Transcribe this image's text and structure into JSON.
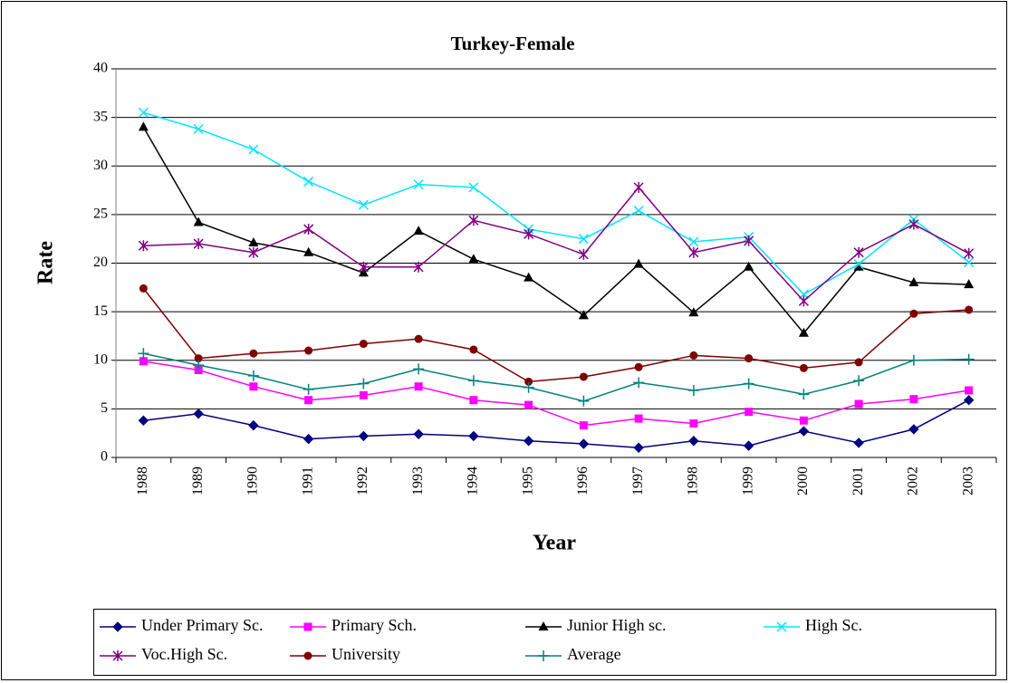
{
  "chart_data": {
    "type": "line",
    "title": "Turkey-Female",
    "x_label": "Year",
    "y_label": "Rate",
    "categories": [
      "1988",
      "1989",
      "1990",
      "1991",
      "1992",
      "1993",
      "1994",
      "1995",
      "1996",
      "1997",
      "1998",
      "1999",
      "2000",
      "2001",
      "2002",
      "2003"
    ],
    "ylim": [
      0,
      40
    ],
    "yticks": [
      0,
      5,
      10,
      15,
      20,
      25,
      30,
      35,
      40
    ],
    "grid": true,
    "legend": "bottom",
    "series": [
      {
        "name": "Under Primary Sc.",
        "color": "#000080",
        "marker": "diamond",
        "values": [
          3.8,
          4.5,
          3.3,
          1.9,
          2.2,
          2.4,
          2.2,
          1.7,
          1.4,
          1.0,
          1.7,
          1.2,
          2.7,
          1.5,
          2.9,
          5.9
        ]
      },
      {
        "name": "Primary Sch.",
        "color": "#ff00ff",
        "marker": "square",
        "values": [
          9.9,
          9.0,
          7.3,
          5.9,
          6.4,
          7.3,
          5.9,
          5.4,
          3.3,
          4.0,
          3.5,
          4.7,
          3.8,
          5.5,
          6.0,
          6.9
        ]
      },
      {
        "name": "Junior High sc.",
        "color": "#000000",
        "marker": "triangle",
        "values": [
          34.0,
          24.2,
          22.1,
          21.1,
          19.0,
          23.3,
          20.4,
          18.5,
          14.6,
          19.9,
          14.9,
          19.6,
          12.8,
          19.6,
          18.0,
          17.8
        ]
      },
      {
        "name": "High Sc.",
        "color": "#00e5ff",
        "marker": "x",
        "values": [
          35.5,
          33.8,
          31.7,
          28.4,
          26.0,
          28.1,
          27.8,
          23.5,
          22.5,
          25.4,
          22.2,
          22.7,
          16.8,
          19.9,
          24.5,
          20.1
        ]
      },
      {
        "name": "Voc.High Sc.",
        "color": "#800080",
        "marker": "star",
        "values": [
          21.8,
          22.0,
          21.1,
          23.5,
          19.6,
          19.6,
          24.4,
          23.0,
          20.9,
          27.8,
          21.1,
          22.3,
          16.1,
          21.1,
          24.0,
          21.0
        ]
      },
      {
        "name": "University",
        "color": "#800000",
        "marker": "circle",
        "values": [
          17.4,
          10.2,
          10.7,
          11.0,
          11.7,
          12.2,
          11.1,
          7.8,
          8.3,
          9.3,
          10.5,
          10.2,
          9.2,
          9.8,
          14.8,
          15.2
        ]
      },
      {
        "name": "Average",
        "color": "#008080",
        "marker": "plus",
        "values": [
          10.7,
          9.5,
          8.4,
          7.0,
          7.6,
          9.1,
          7.9,
          7.2,
          5.8,
          7.7,
          6.9,
          7.6,
          6.5,
          7.9,
          10.0,
          10.1
        ]
      }
    ]
  }
}
